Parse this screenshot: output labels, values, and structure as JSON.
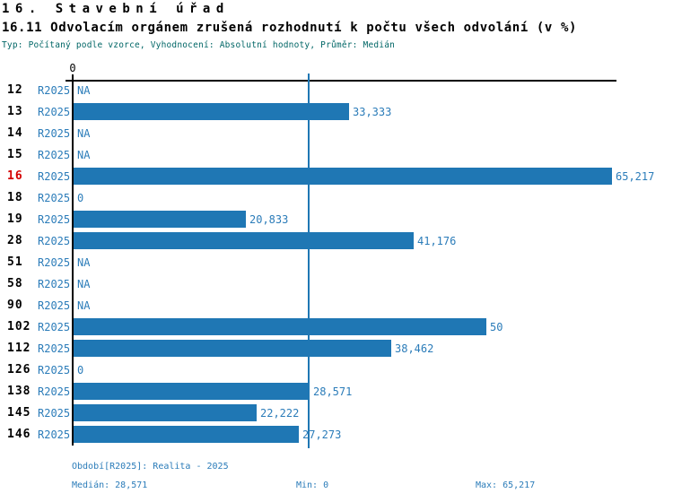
{
  "header": {
    "title": "16. Stavební úřad",
    "subtitle": "16.11 Odvolacím orgánem zrušená rozhodnutí k počtu všech odvolání (v %)",
    "meta": "Typ: Počítaný podle vzorce, Vyhodnocení: Absolutní hodnoty, Průměr: Medián"
  },
  "chart_data": {
    "type": "bar",
    "orientation": "horizontal",
    "title": "16.11 Odvolacím orgánem zrušená rozhodnutí k počtu všech odvolání (v %)",
    "xlabel": "",
    "ylabel": "",
    "axis_zero_label": "0",
    "xlim": [
      0,
      65.9
    ],
    "grid": false,
    "series_label": "R2025",
    "categories": [
      "12",
      "13",
      "14",
      "15",
      "16",
      "18",
      "19",
      "28",
      "51",
      "58",
      "90",
      "102",
      "112",
      "126",
      "138",
      "145",
      "146"
    ],
    "rows": [
      {
        "id": "12",
        "period": "R2025",
        "value": null,
        "label": "NA",
        "highlight": false
      },
      {
        "id": "13",
        "period": "R2025",
        "value": 33.333,
        "label": "33,333",
        "highlight": false
      },
      {
        "id": "14",
        "period": "R2025",
        "value": null,
        "label": "NA",
        "highlight": false
      },
      {
        "id": "15",
        "period": "R2025",
        "value": null,
        "label": "NA",
        "highlight": false
      },
      {
        "id": "16",
        "period": "R2025",
        "value": 65.217,
        "label": "65,217",
        "highlight": true
      },
      {
        "id": "18",
        "period": "R2025",
        "value": 0,
        "label": "0",
        "highlight": false
      },
      {
        "id": "19",
        "period": "R2025",
        "value": 20.833,
        "label": "20,833",
        "highlight": false
      },
      {
        "id": "28",
        "period": "R2025",
        "value": 41.176,
        "label": "41,176",
        "highlight": false
      },
      {
        "id": "51",
        "period": "R2025",
        "value": null,
        "label": "NA",
        "highlight": false
      },
      {
        "id": "58",
        "period": "R2025",
        "value": null,
        "label": "NA",
        "highlight": false
      },
      {
        "id": "90",
        "period": "R2025",
        "value": null,
        "label": "NA",
        "highlight": false
      },
      {
        "id": "102",
        "period": "R2025",
        "value": 50,
        "label": "50",
        "highlight": false
      },
      {
        "id": "112",
        "period": "R2025",
        "value": 38.462,
        "label": "38,462",
        "highlight": false
      },
      {
        "id": "126",
        "period": "R2025",
        "value": 0,
        "label": "0",
        "highlight": false
      },
      {
        "id": "138",
        "period": "R2025",
        "value": 28.571,
        "label": "28,571",
        "highlight": false
      },
      {
        "id": "145",
        "period": "R2025",
        "value": 22.222,
        "label": "22,222",
        "highlight": false
      },
      {
        "id": "146",
        "period": "R2025",
        "value": 27.273,
        "label": "27,273",
        "highlight": false
      }
    ],
    "median": 28.571,
    "min": 0,
    "max": 65.217,
    "legend_position": "none",
    "colors": {
      "bar": "#1f77b4",
      "median_line": "#1f77b4",
      "value_text": "#2b7cb9",
      "highlight_row": "#d40000",
      "meta_text": "#006666"
    }
  },
  "footer": {
    "period_line": "Období[R2025]: Realita - 2025",
    "median_label": "Medián: 28,571",
    "min_label": "Min: 0",
    "max_label": "Max: 65,217"
  }
}
